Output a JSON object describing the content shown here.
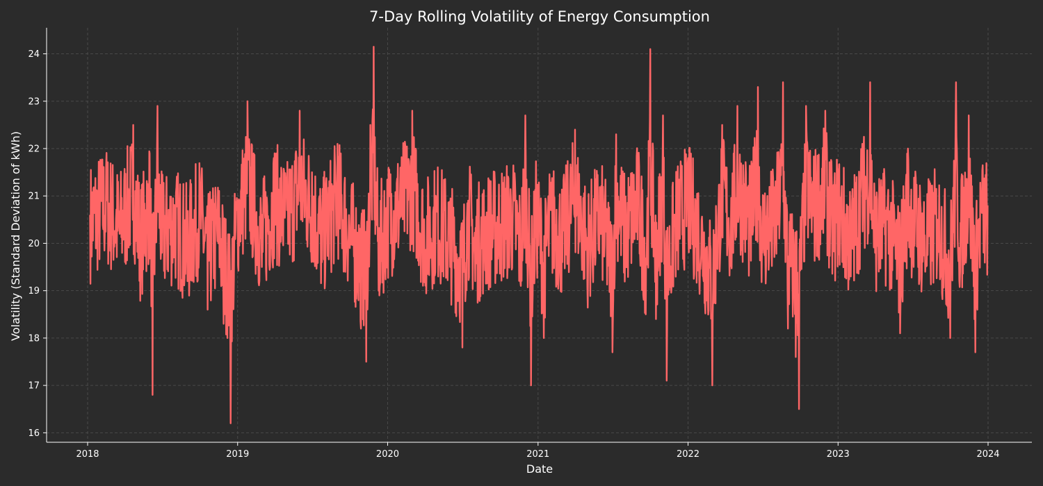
{
  "chart_data": {
    "type": "line",
    "title": "7-Day Rolling Volatility of Energy Consumption",
    "xlabel": "Date",
    "ylabel": "Volatility (Standard Deviation of kWh)",
    "x_range": [
      "2018-01-01",
      "2023-12-31"
    ],
    "ylim": [
      15.8,
      24.55
    ],
    "x_ticks": [
      "2018",
      "2019",
      "2020",
      "2021",
      "2022",
      "2023",
      "2024"
    ],
    "y_ticks": [
      16,
      17,
      18,
      19,
      20,
      21,
      22,
      23,
      24
    ],
    "grid": true,
    "line_color": "#ff6666",
    "background_color": "#2b2b2b",
    "series": [
      {
        "x": [
          "2018-01-07",
          "2018-02-15",
          "2018-03-20",
          "2018-04-22",
          "2018-05-10",
          "2018-06-01",
          "2018-06-08",
          "2018-06-20",
          "2018-07-01",
          "2018-08-01",
          "2018-09-01",
          "2018-10-01",
          "2018-10-20",
          "2018-11-15",
          "2018-11-28",
          "2018-12-15",
          "2019-01-01",
          "2019-01-25",
          "2019-03-01",
          "2019-04-01",
          "2019-05-01",
          "2019-06-01",
          "2019-07-01",
          "2019-07-25",
          "2019-09-01",
          "2019-10-01",
          "2019-10-28",
          "2019-11-10",
          "2019-11-20",
          "2019-11-28",
          "2019-12-10",
          "2020-01-01",
          "2020-02-01",
          "2020-03-01",
          "2020-04-01",
          "2020-05-01",
          "2020-06-01",
          "2020-07-01",
          "2020-07-15",
          "2020-08-01",
          "2020-09-01",
          "2020-10-01",
          "2020-11-01",
          "2020-11-20",
          "2020-12-01",
          "2020-12-15",
          "2020-12-28",
          "2021-01-15",
          "2021-02-01",
          "2021-03-01",
          "2021-04-01",
          "2021-05-01",
          "2021-06-01",
          "2021-07-01",
          "2021-07-10",
          "2021-08-01",
          "2021-09-01",
          "2021-09-20",
          "2021-10-01",
          "2021-10-15",
          "2021-11-01",
          "2021-11-10",
          "2021-12-01",
          "2022-01-01",
          "2022-02-01",
          "2022-03-01",
          "2022-03-25",
          "2022-04-15",
          "2022-05-01",
          "2022-06-01",
          "2022-06-20",
          "2022-07-01",
          "2022-08-01",
          "2022-08-20",
          "2022-09-01",
          "2022-09-20",
          "2022-09-28",
          "2022-10-15",
          "2022-11-01",
          "2022-12-01",
          "2022-12-20",
          "2023-01-01",
          "2023-02-01",
          "2023-03-01",
          "2023-03-20",
          "2023-04-01",
          "2023-05-01",
          "2023-06-01",
          "2023-06-20",
          "2023-07-01",
          "2023-08-01",
          "2023-09-01",
          "2023-10-01",
          "2023-10-15",
          "2023-10-25",
          "2023-11-15",
          "2023-12-01",
          "2023-12-15",
          "2023-12-31"
        ],
        "values": [
          20.6,
          21.6,
          20.2,
          22.5,
          19.4,
          21.9,
          16.8,
          22.9,
          19.8,
          20.5,
          19.2,
          21.1,
          18.6,
          20.0,
          18.3,
          16.2,
          20.9,
          23.0,
          19.5,
          21.9,
          20.7,
          22.8,
          21.5,
          19.6,
          22.1,
          19.9,
          18.2,
          17.5,
          22.5,
          24.15,
          19.0,
          20.8,
          21.6,
          22.8,
          19.6,
          20.7,
          19.5,
          17.8,
          20.9,
          19.2,
          20.1,
          20.4,
          20.9,
          19.1,
          22.7,
          17.0,
          21.0,
          18.0,
          20.7,
          19.6,
          22.4,
          19.1,
          21.0,
          17.7,
          22.3,
          19.9,
          21.8,
          18.5,
          24.1,
          18.4,
          22.7,
          17.1,
          20.4,
          21.8,
          19.6,
          17.0,
          22.5,
          20.2,
          22.9,
          20.4,
          23.3,
          19.8,
          20.5,
          23.4,
          18.2,
          17.6,
          16.5,
          22.9,
          21.3,
          22.8,
          20.1,
          21.4,
          19.3,
          22.1,
          23.4,
          19.8,
          20.5,
          18.1,
          22.0,
          20.7,
          19.4,
          20.5,
          18.0,
          23.4,
          19.4,
          22.7,
          17.7,
          21.1,
          20.8
        ]
      }
    ]
  }
}
